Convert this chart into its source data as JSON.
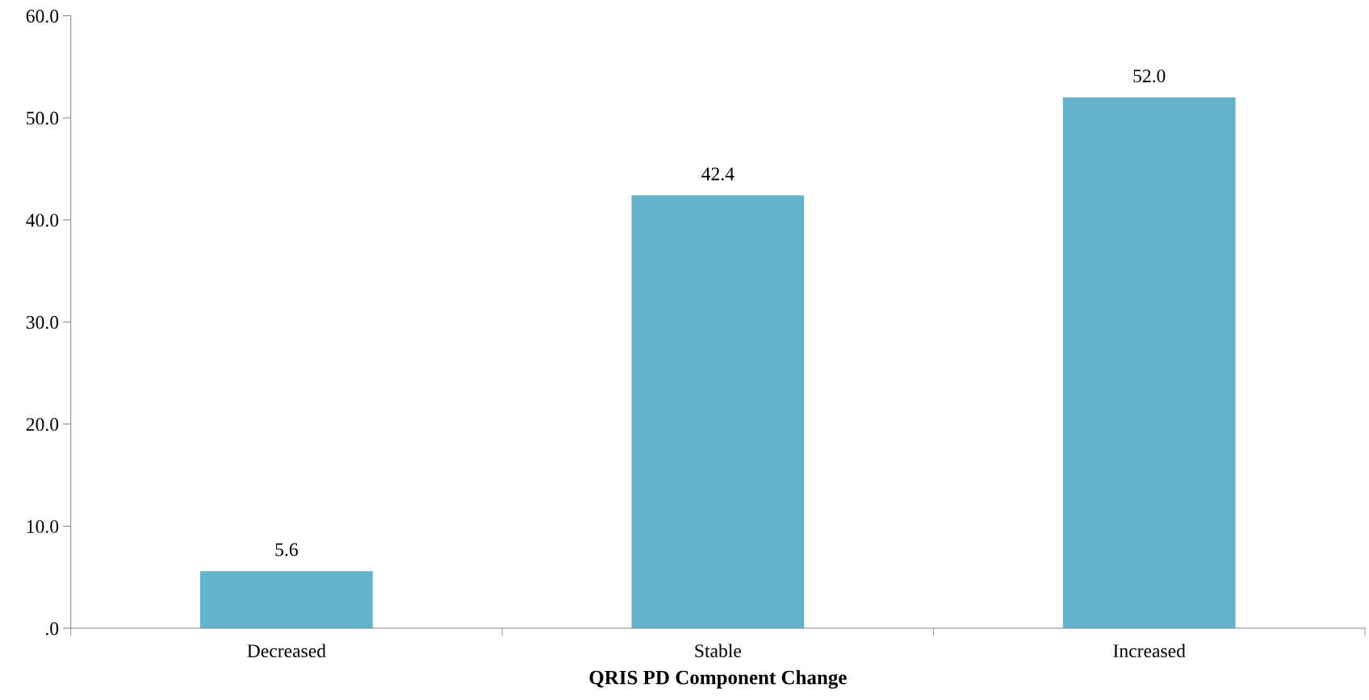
{
  "chart_data": {
    "type": "bar",
    "xlabel": "QRIS PD Component Change",
    "categories": [
      "Decreased",
      "Stable",
      "Increased"
    ],
    "values": [
      5.6,
      42.4,
      52.0
    ],
    "value_labels": [
      "5.6",
      "42.4",
      "52.0"
    ],
    "color": "#62b3cb",
    "ylim": [
      0,
      60
    ],
    "yticks": [
      {
        "value": 0,
        "label": ".0"
      },
      {
        "value": 10,
        "label": "10.0"
      },
      {
        "value": 20,
        "label": "20.0"
      },
      {
        "value": 30,
        "label": "30.0"
      },
      {
        "value": 40,
        "label": "40.0"
      },
      {
        "value": 50,
        "label": "50.0"
      },
      {
        "value": 60,
        "label": "60.0"
      }
    ],
    "grid": false,
    "legend": false
  }
}
